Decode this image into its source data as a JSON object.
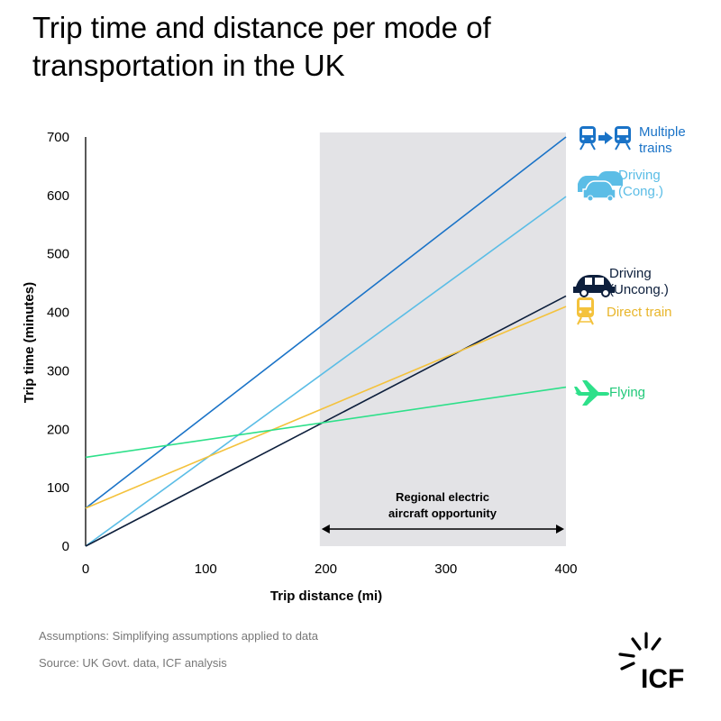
{
  "chart_data": {
    "type": "line",
    "title": "Trip time and distance per mode of transportation in the UK",
    "xlabel": "Trip distance (mi)",
    "ylabel": "Trip time (minutes)",
    "xlim": [
      0,
      400
    ],
    "ylim": [
      0,
      700
    ],
    "x_ticks": [
      0,
      100,
      200,
      300,
      400
    ],
    "y_ticks": [
      0,
      100,
      200,
      300,
      400,
      500,
      600,
      700
    ],
    "grid": false,
    "series": [
      {
        "name": "Multiple trains",
        "icon": "train-transfer-icon",
        "color": "#1a73c7",
        "x": [
          0,
          400
        ],
        "y": [
          65,
          700
        ]
      },
      {
        "name": "Driving (Cong.)",
        "icon": "cars-icon",
        "color": "#5bbde6",
        "x": [
          0,
          400
        ],
        "y": [
          0,
          598
        ]
      },
      {
        "name": "Driving (Uncong.)",
        "icon": "car-icon",
        "color": "#0d1f3c",
        "x": [
          0,
          400
        ],
        "y": [
          0,
          428
        ]
      },
      {
        "name": "Direct train",
        "icon": "train-icon",
        "color": "#f4c23c",
        "x": [
          0,
          400
        ],
        "y": [
          65,
          410
        ]
      },
      {
        "name": "Flying",
        "icon": "airplane-icon",
        "color": "#2ee08a",
        "x": [
          0,
          400
        ],
        "y": [
          152,
          272
        ]
      }
    ],
    "shaded_region": {
      "x_range": [
        195,
        400
      ],
      "color": "#e3e3e6"
    },
    "annotation": {
      "lines": [
        "Regional electric",
        "aircraft opportunity"
      ],
      "arrow_x_range": [
        195,
        400
      ]
    }
  },
  "legend_labels": {
    "multiple_trains": [
      "Multiple",
      "trains"
    ],
    "driving_cong": [
      "Driving",
      "(Cong.)"
    ],
    "driving_uncong": [
      "Driving",
      "(Uncong.)"
    ],
    "direct_train": [
      "Direct train"
    ],
    "flying": [
      "Flying"
    ]
  },
  "notes": {
    "assumptions": "Assumptions: Simplifying assumptions applied to data",
    "source": "Source: UK Govt. data, ICF analysis"
  },
  "logo": {
    "text": "ICF"
  }
}
